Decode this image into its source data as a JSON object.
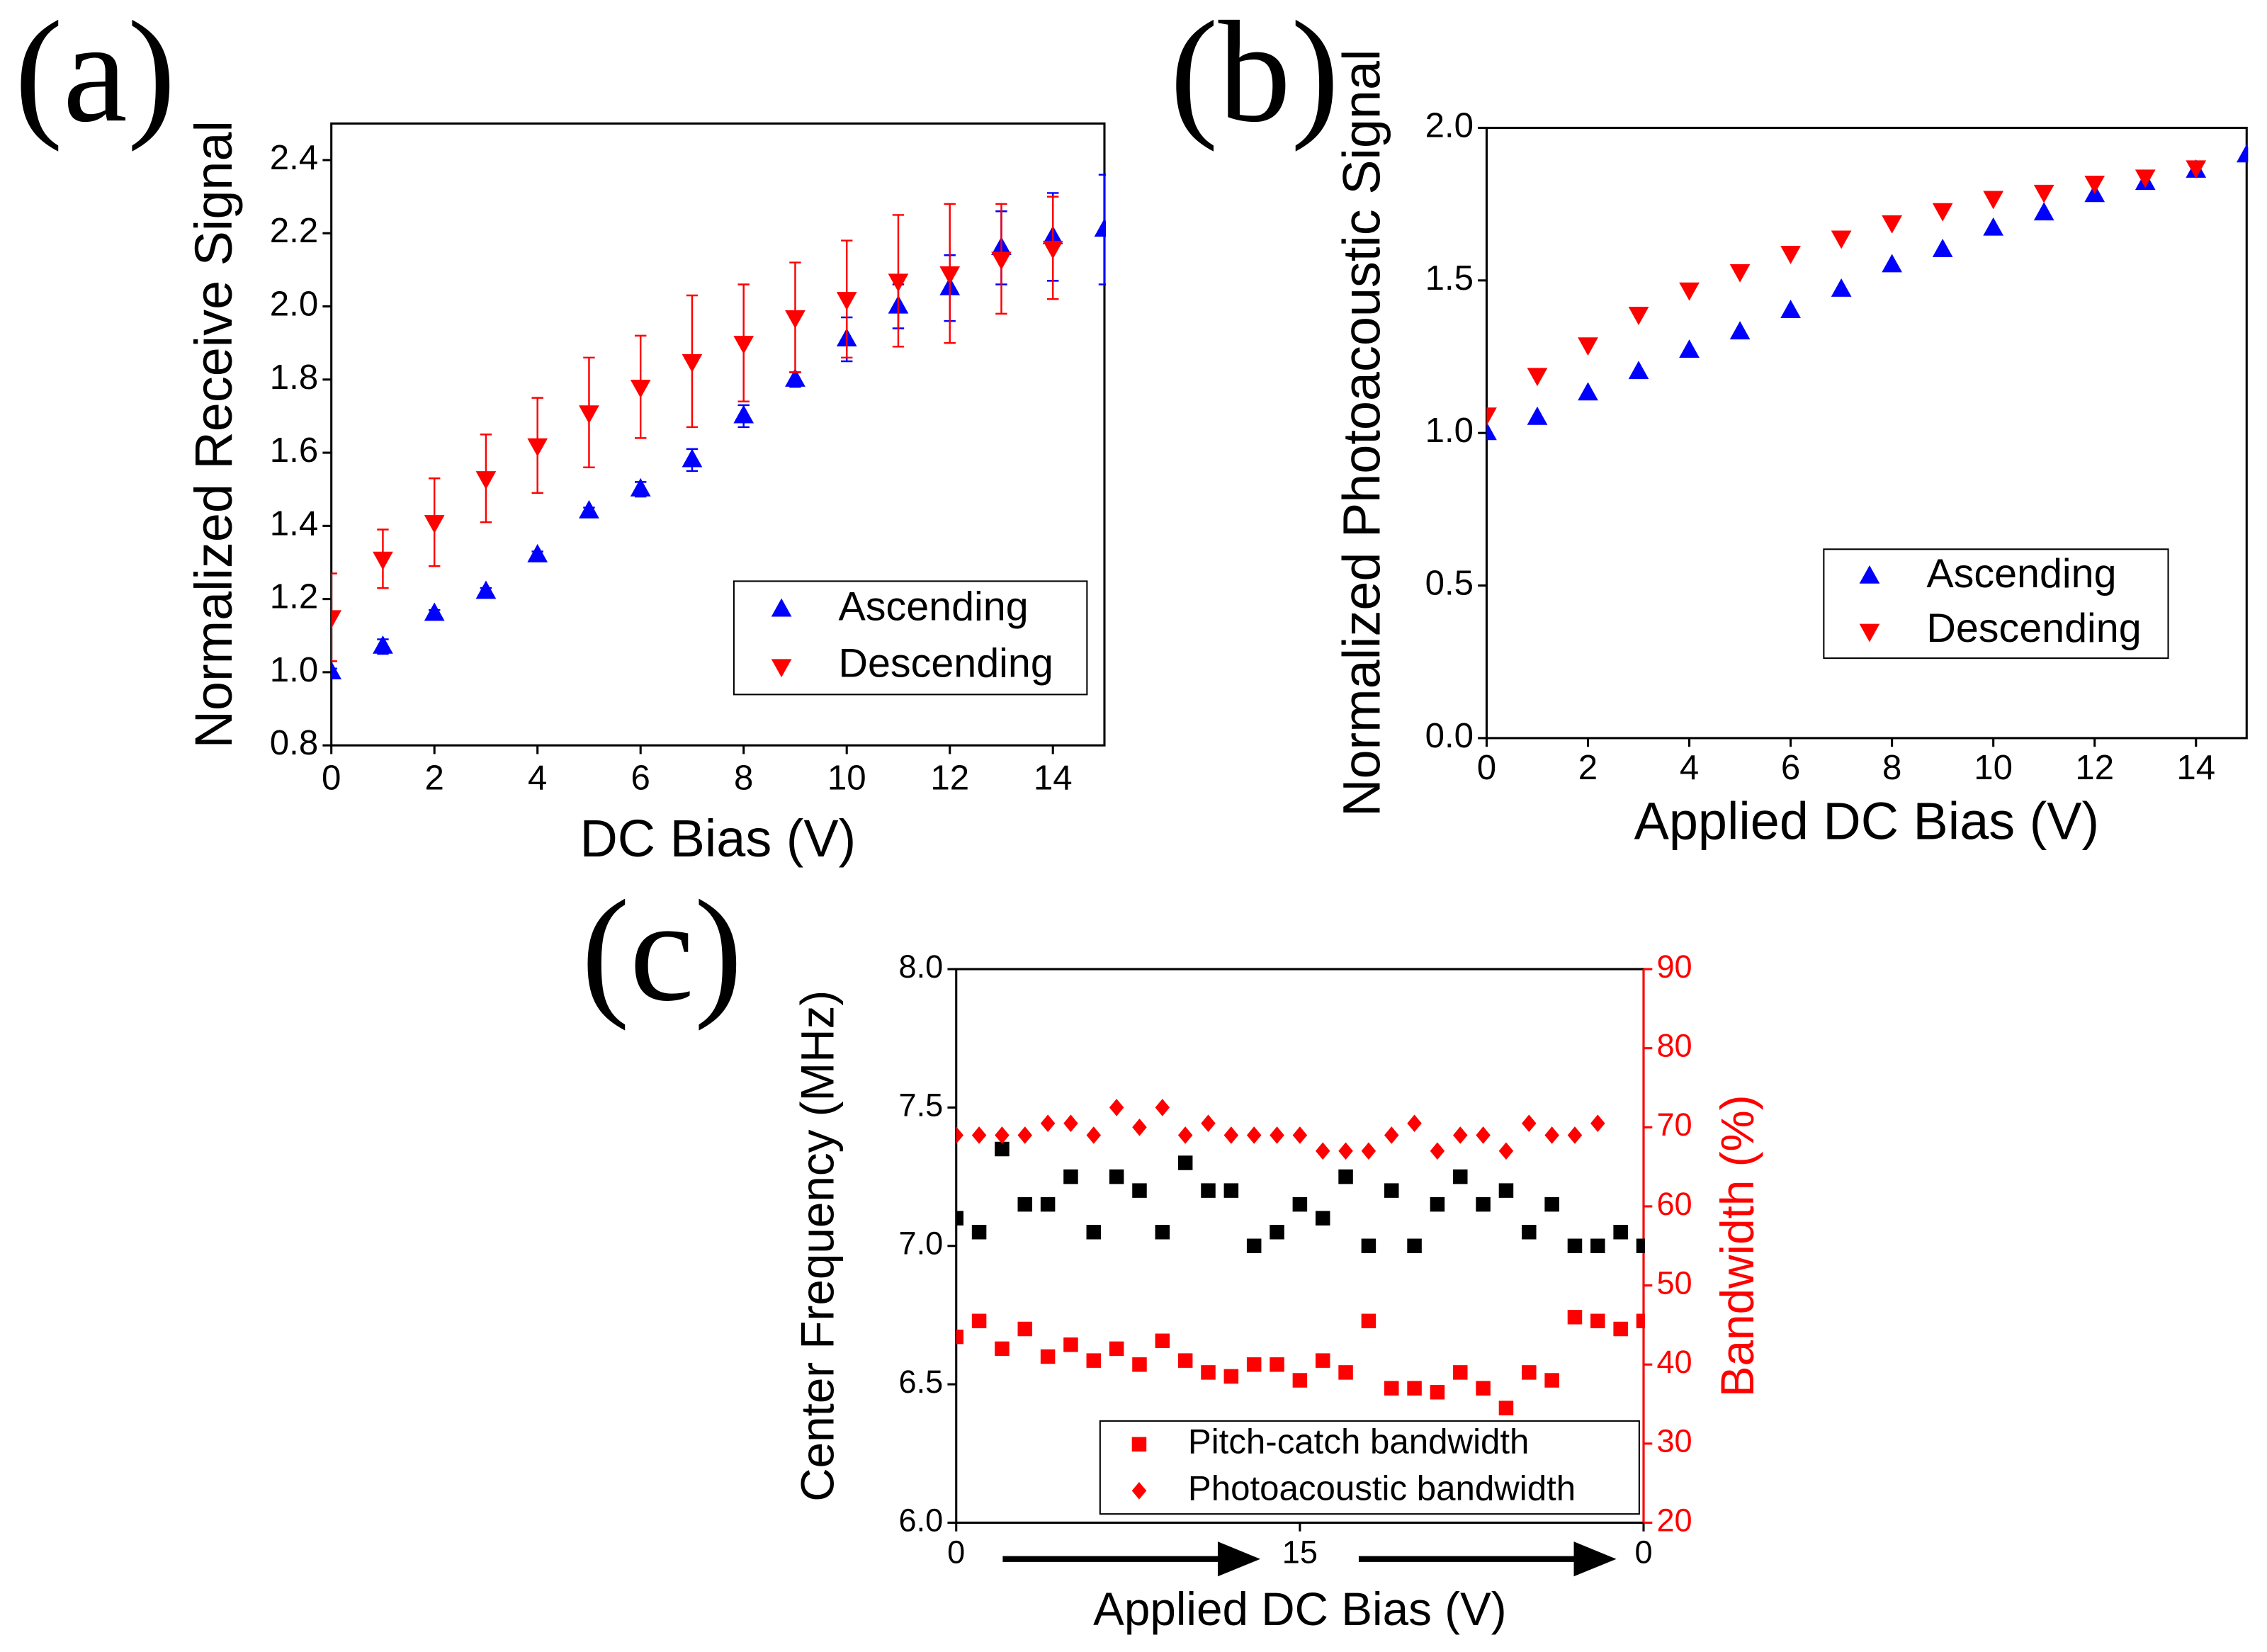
{
  "chart_data": [
    {
      "type": "scatter",
      "label": "(a)",
      "xlabel": "DC Bias (V)",
      "ylabel": "Normalized Receive Signal",
      "xlim": [
        0,
        15
      ],
      "xticks": [
        0,
        2,
        4,
        6,
        8,
        10,
        12,
        14
      ],
      "ylim": [
        0.8,
        2.5
      ],
      "yticks": [
        0.8,
        {
          "value": 1,
          "label": "1.0"
        },
        1.2,
        1.4,
        1.6,
        1.8,
        {
          "value": 2,
          "label": "2.0"
        },
        2.2,
        2.4
      ],
      "legend": "lower right",
      "series": [
        {
          "name": "Ascending",
          "color": "#0000ff",
          "marker": "triangle-up",
          "x": [
            0,
            1,
            2,
            3,
            4,
            5,
            6,
            7,
            8,
            9,
            10,
            11,
            12,
            13,
            14,
            15
          ],
          "values": [
            1.0,
            1.07,
            1.16,
            1.22,
            1.32,
            1.44,
            1.5,
            1.58,
            1.7,
            1.8,
            1.91,
            2.0,
            2.05,
            2.16,
            2.19,
            2.21
          ],
          "errors": [
            0.01,
            0.02,
            0.01,
            0.01,
            0.01,
            0.01,
            0.02,
            0.03,
            0.03,
            0.02,
            0.06,
            0.06,
            0.09,
            0.1,
            0.12,
            0.15
          ]
        },
        {
          "name": "Descending",
          "color": "#ff0000",
          "marker": "triangle-down",
          "x": [
            0,
            1,
            2,
            3,
            4,
            5,
            6,
            7,
            8,
            9,
            10,
            11,
            12,
            13,
            14
          ],
          "values": [
            1.15,
            1.31,
            1.41,
            1.53,
            1.62,
            1.71,
            1.78,
            1.85,
            1.9,
            1.97,
            2.02,
            2.07,
            2.09,
            2.13,
            2.16
          ],
          "errors": [
            0.12,
            0.08,
            0.12,
            0.12,
            0.13,
            0.15,
            0.14,
            0.18,
            0.16,
            0.15,
            0.16,
            0.18,
            0.19,
            0.15,
            0.14
          ]
        }
      ]
    },
    {
      "type": "scatter",
      "label": "(b)",
      "xlabel": "Applied DC Bias (V)",
      "ylabel": "Normalized Photoacoustic Signal",
      "xlim": [
        0,
        15
      ],
      "xticks": [
        0,
        2,
        4,
        6,
        8,
        10,
        12,
        14
      ],
      "ylim": [
        0,
        2
      ],
      "yticks": [
        {
          "value": 0,
          "label": "0.0"
        },
        0.5,
        {
          "value": 1,
          "label": "1.0"
        },
        1.5,
        {
          "value": 2,
          "label": "2.0"
        }
      ],
      "legend": "lower right",
      "series": [
        {
          "name": "Ascending",
          "color": "#0000ff",
          "marker": "triangle-up",
          "x": [
            0,
            1,
            2,
            3,
            4,
            5,
            6,
            7,
            8,
            9,
            10,
            11,
            12,
            13,
            14,
            15
          ],
          "values": [
            1.0,
            1.05,
            1.13,
            1.2,
            1.27,
            1.33,
            1.4,
            1.47,
            1.55,
            1.6,
            1.67,
            1.72,
            1.78,
            1.82,
            1.86,
            1.91
          ]
        },
        {
          "name": "Descending",
          "color": "#ff0000",
          "marker": "triangle-down",
          "x": [
            0,
            1,
            2,
            3,
            4,
            5,
            6,
            7,
            8,
            9,
            10,
            11,
            12,
            13,
            14
          ],
          "values": [
            1.06,
            1.19,
            1.29,
            1.39,
            1.47,
            1.53,
            1.59,
            1.64,
            1.69,
            1.73,
            1.77,
            1.79,
            1.82,
            1.84,
            1.87
          ]
        }
      ]
    },
    {
      "type": "scatter",
      "label": "(c)",
      "xlabel": "Applied DC Bias (V)",
      "ylabel": "Center Frequency (MHz)",
      "y2label": "Bandwidth (%)",
      "xlim": [
        0,
        30
      ],
      "xticks": [
        0,
        15,
        {
          "value": 30,
          "label": "0"
        }
      ],
      "ylim": [
        6,
        8
      ],
      "yticks": [
        {
          "value": 6,
          "label": "6.0"
        },
        6.5,
        {
          "value": 7,
          "label": "7.0"
        },
        7.5,
        {
          "value": 8,
          "label": "8.0"
        }
      ],
      "y2lim": [
        20,
        90
      ],
      "y2ticks": [
        20,
        30,
        40,
        50,
        60,
        70,
        80,
        90
      ],
      "y2color": "#ff0000",
      "legend": "lower right",
      "series": [
        {
          "color": "#000000",
          "marker": "square",
          "x": [
            0,
            1,
            2,
            3,
            4,
            5,
            6,
            7,
            8,
            9,
            10,
            11,
            12,
            13,
            14,
            15,
            16,
            17,
            18,
            19,
            20,
            21,
            22,
            23,
            24,
            25,
            26,
            27,
            28,
            29,
            30
          ],
          "values": [
            7.1,
            7.05,
            7.35,
            7.15,
            7.15,
            7.25,
            7.05,
            7.25,
            7.2,
            7.05,
            7.3,
            7.2,
            7.2,
            7.0,
            7.05,
            7.15,
            7.1,
            7.25,
            7.0,
            7.2,
            7.0,
            7.15,
            7.25,
            7.15,
            7.2,
            7.05,
            7.15,
            7.0,
            7.0,
            7.05,
            7.0
          ]
        },
        {
          "name": "Pitch-catch bandwidth",
          "color": "#ff0000",
          "marker": "square",
          "axis": "y2",
          "x": [
            0,
            1,
            2,
            3,
            4,
            5,
            6,
            7,
            8,
            9,
            10,
            11,
            12,
            13,
            14,
            15,
            16,
            17,
            18,
            19,
            20,
            21,
            22,
            23,
            24,
            25,
            26,
            27,
            28,
            29,
            30
          ],
          "values": [
            43.5,
            45.5,
            42,
            44.5,
            41,
            42.5,
            40.5,
            42,
            40,
            43,
            40.5,
            39,
            38.5,
            40,
            40,
            38,
            40.5,
            39,
            45.5,
            37,
            37,
            36.5,
            39,
            37,
            34.5,
            39,
            38,
            46,
            45.5,
            44.5,
            45.5
          ]
        },
        {
          "name": "Photoacoustic bandwidth",
          "color": "#ff0000",
          "marker": "diamond",
          "axis": "y2",
          "x": [
            0,
            1,
            2,
            3,
            4,
            5,
            6,
            7,
            8,
            9,
            10,
            11,
            12,
            13,
            14,
            15,
            16,
            17,
            18,
            19,
            20,
            21,
            22,
            23,
            24,
            25,
            26,
            27,
            28
          ],
          "values": [
            69,
            69,
            69,
            69,
            70.5,
            70.5,
            69,
            72.5,
            70,
            72.5,
            69,
            70.5,
            69,
            69,
            69,
            69,
            67,
            67,
            67,
            69,
            70.5,
            67,
            69,
            69,
            67,
            70.5,
            69,
            69,
            70.5
          ]
        }
      ]
    }
  ]
}
